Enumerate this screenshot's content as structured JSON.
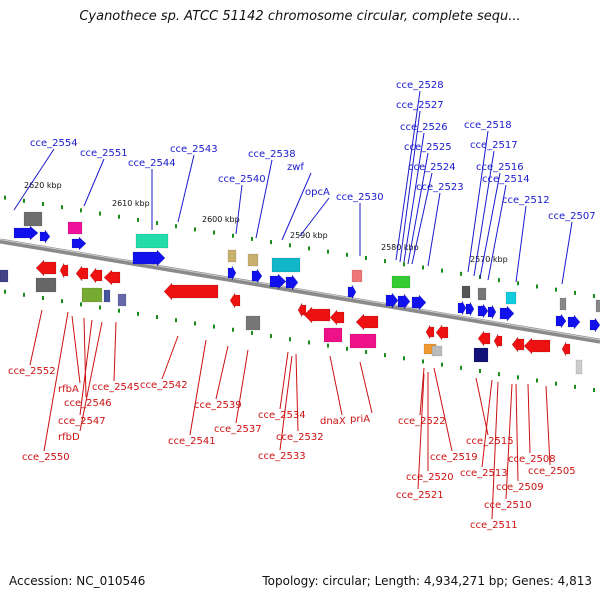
{
  "title": "Cyanothece sp. ATCC 51142 chromosome circular, complete sequ...",
  "footer": {
    "accession": "Accession: NC_010546",
    "summary": "Topology: circular; Length: 4,934,271 bp; Genes: 4,813"
  },
  "colors": {
    "top_label": "#1a1acc",
    "bottom_label": "#cc1111",
    "backbone": "#8a8a8a",
    "forward_gene": "#1111ee",
    "reverse_gene": "#ee1111",
    "tick": "#1a8c1a"
  },
  "scale_ticks": [
    "2620 kbp",
    "2610 kbp",
    "2600 kbp",
    "2590 kbp",
    "2580 kbp",
    "2570 kbp"
  ],
  "top_labels": [
    "cce_2554",
    "cce_2551",
    "cce_2544",
    "cce_2543",
    "cce_2540",
    "cce_2538",
    "zwf",
    "opcA",
    "cce_2530",
    "cce_2528",
    "cce_2527",
    "cce_2526",
    "cce_2525",
    "cce_2524",
    "cce_2523",
    "cce_2518",
    "cce_2517",
    "cce_2516",
    "cce_2514",
    "cce_2512",
    "cce_2507"
  ],
  "bottom_labels": [
    "cce_2552",
    "rfbA",
    "cce_2545",
    "cce_2546",
    "cce_2547",
    "rfbD",
    "cce_2550",
    "cce_2542",
    "cce_2539",
    "cce_2537",
    "cce_2541",
    "cce_2534",
    "cce_2532",
    "cce_2533",
    "dnaX",
    "priA",
    "cce_2522",
    "cce_2519",
    "cce_2520",
    "cce_2521",
    "cce_2515",
    "cce_2513",
    "cce_2508",
    "cce_2505",
    "cce_2509",
    "cce_2510",
    "cce_2511"
  ]
}
